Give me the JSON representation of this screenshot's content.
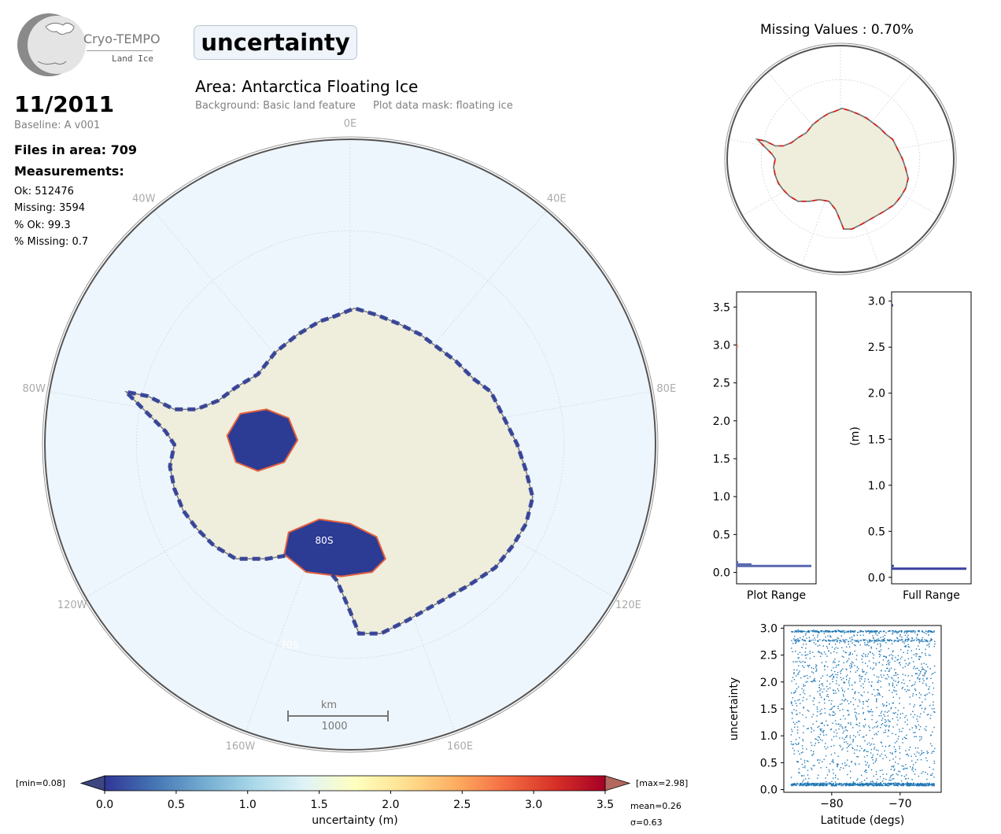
{
  "logo": {
    "name": "Cryo-TEMPO",
    "sub": "Land Ice"
  },
  "title": "uncertainty",
  "date": "11/2011",
  "baseline": "Baseline: A v001",
  "files_in_area": "Files in area: 709",
  "measurements_label": "Measurements:",
  "stats": {
    "ok": "Ok: 512476",
    "missing": "Missing: 3594",
    "pct_ok": "% Ok: 99.3",
    "pct_missing": "% Missing: 0.7"
  },
  "area": "Area: Antarctica Floating Ice",
  "background_note": "Background: Basic land feature",
  "mask_note": "Plot data mask: floating ice",
  "missing_values_title": "Missing Values : 0.70%",
  "map": {
    "lon_labels": [
      "0E",
      "40E",
      "80E",
      "120E",
      "160E",
      "160W",
      "120W",
      "80W",
      "40W"
    ],
    "lat_labels": [
      "80S",
      "70S"
    ],
    "scale_unit": "km",
    "scale_value": "1000",
    "colors": {
      "ocean": "#eef6fd",
      "land": "#efeddc",
      "coast": "#7a7a7a",
      "data": "#2c3b94",
      "missing": "#e8120c"
    }
  },
  "colorbar": {
    "min_label": "[min=0.08]",
    "max_label": "[max=2.98]",
    "ticks": [
      "0.0",
      "0.5",
      "1.0",
      "1.5",
      "2.0",
      "2.5",
      "3.0",
      "3.5"
    ],
    "label": "uncertainty (m)",
    "mean": "mean=0.26",
    "sigma": "σ=0.63",
    "colormap": "RdYlBu_r"
  },
  "chart_data": [
    {
      "type": "bar",
      "title": "",
      "xlabel": "Plot Range",
      "ylabel": "",
      "orientation": "horizontal",
      "ylim": [
        -0.15,
        3.7
      ],
      "yticks": [
        "0.0",
        "0.5",
        "1.0",
        "1.5",
        "2.0",
        "2.5",
        "3.0",
        "3.5"
      ],
      "bins": [
        {
          "y": 0.08,
          "count": 1.0
        },
        {
          "y": 0.1,
          "count": 0.2
        },
        {
          "y": 0.13,
          "count": 0.02
        },
        {
          "y": 2.98,
          "count": 0.01
        }
      ]
    },
    {
      "type": "bar",
      "title": "",
      "xlabel": "Full Range",
      "ylabel": "(m)",
      "orientation": "horizontal",
      "ylim": [
        -0.07,
        3.1
      ],
      "yticks": [
        "0.0",
        "0.5",
        "1.0",
        "1.5",
        "2.0",
        "2.5",
        "3.0"
      ],
      "bins": [
        {
          "y": 0.09,
          "count": 1.0
        },
        {
          "y": 0.12,
          "count": 0.03
        },
        {
          "y": 2.95,
          "count": 0.01
        }
      ]
    },
    {
      "type": "scatter",
      "title": "",
      "xlabel": "Latitude (degs)",
      "ylabel": "uncertainty",
      "xlim": [
        -87,
        -64
      ],
      "ylim": [
        -0.05,
        3.05
      ],
      "xticks": [
        "−80",
        "−70"
      ],
      "yticks": [
        "0.0",
        "0.5",
        "1.0",
        "1.5",
        "2.0",
        "2.5",
        "3.0"
      ],
      "color": "#1f77b4",
      "series": [
        {
          "description": "dense point cloud",
          "x_range": [
            -86,
            -65
          ],
          "y_range": [
            0.08,
            2.98
          ],
          "dense_rows": [
            0.1,
            2.78,
            2.95
          ]
        }
      ]
    }
  ]
}
